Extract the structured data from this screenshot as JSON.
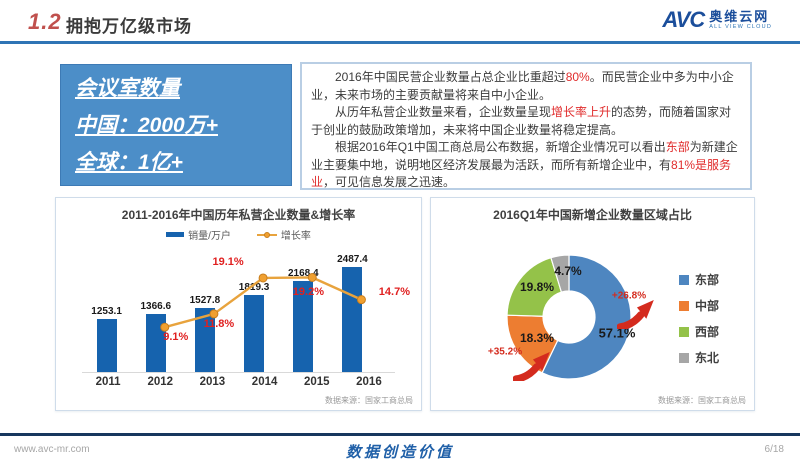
{
  "header": {
    "section_number": "1.2",
    "title": "拥抱万亿级市场",
    "logo": {
      "abbr": "AVC",
      "name_cn": "奥维云网",
      "name_en": "ALL VIEW CLOUD"
    }
  },
  "highlight_box": {
    "lines": [
      "会议室数量",
      "中国：2000万+",
      "全球：1亿+"
    ]
  },
  "summary": {
    "paragraphs": [
      [
        {
          "t": "2016年中国民营企业数量占总企业比重超过"
        },
        {
          "t": "80%",
          "red": true
        },
        {
          "t": "。而民营企业中多为中小企业，未来市场的主要贡献量将来自中小企业。"
        }
      ],
      [
        {
          "t": "从历年私营企业数量来看，企业数量呈现"
        },
        {
          "t": "增长率上升",
          "red": true
        },
        {
          "t": "的态势，而随着国家对于创业的鼓励政策增加，未来将中国企业数量将稳定提高。"
        }
      ],
      [
        {
          "t": "根据2016年Q1中国工商总局公布数据，新增企业情况可以看出"
        },
        {
          "t": "东部",
          "red": true
        },
        {
          "t": "为新建企业主要集中地，说明地区经济发展最为活跃，而所有新增企业中，有"
        },
        {
          "t": "81%是服务业",
          "red": true
        },
        {
          "t": "，可见信息发展之迅速。"
        }
      ]
    ]
  },
  "chart_data": [
    {
      "type": "bar",
      "title": "2011-2016年中国历年私营企业数量&增长率",
      "categories": [
        "2011",
        "2012",
        "2013",
        "2014",
        "2015",
        "2016"
      ],
      "series": [
        {
          "name": "销量/万户",
          "type": "bar",
          "color": "#1663AE",
          "values": [
            1253.1,
            1366.6,
            1527.8,
            1819.3,
            2168.4,
            2487.4
          ]
        },
        {
          "name": "增长率",
          "type": "line",
          "color": "#E8A33D",
          "unit": "%",
          "values": [
            null,
            9.1,
            11.8,
            19.1,
            19.2,
            14.7
          ]
        }
      ],
      "ylim": [
        0,
        2800
      ],
      "y2lim": [
        0,
        26
      ],
      "legend_position": "top",
      "grid": false,
      "source": "数据来源：国家工商总局"
    },
    {
      "type": "pie",
      "subtype": "donut",
      "title": "2016Q1年中国新增企业数量区域占比",
      "slices": [
        {
          "label": "东部",
          "value": 57.1,
          "color": "#4E86C0"
        },
        {
          "label": "中部",
          "value": 18.3,
          "color": "#ED7D31"
        },
        {
          "label": "西部",
          "value": 19.8,
          "color": "#94C249"
        },
        {
          "label": "东北",
          "value": 4.7,
          "color": "#A6A6A6"
        }
      ],
      "annotations": [
        {
          "text": "+26.8%",
          "target": "东部"
        },
        {
          "text": "+35.2%",
          "target": "中部"
        }
      ],
      "legend_position": "right",
      "source": "数据来源：国家工商总局"
    }
  ],
  "footer": {
    "website": "www.avc-mr.com",
    "slogan": "数据创造价值",
    "page": "6/18"
  }
}
